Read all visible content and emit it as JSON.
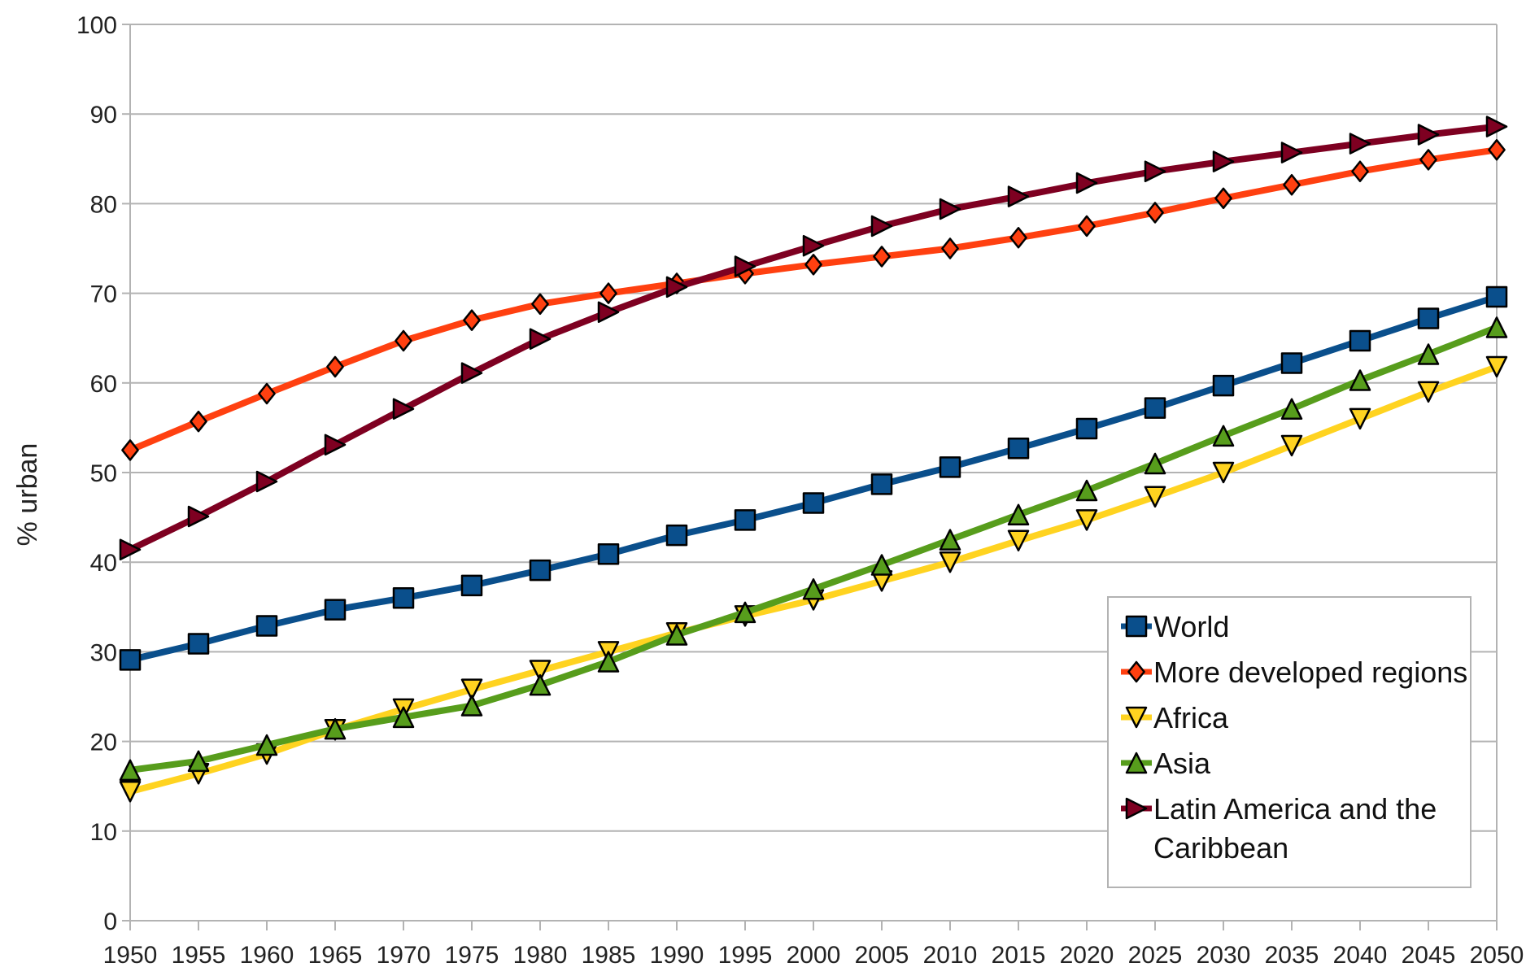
{
  "chart_data": {
    "type": "line",
    "title": "",
    "xlabel": "",
    "ylabel": "% urban",
    "x": [
      1950,
      1955,
      1960,
      1965,
      1970,
      1975,
      1980,
      1985,
      1990,
      1995,
      2000,
      2005,
      2010,
      2015,
      2020,
      2025,
      2030,
      2035,
      2040,
      2045,
      2050
    ],
    "x_tick_labels": [
      "1950",
      "1955",
      "1960",
      "1965",
      "1970",
      "1975",
      "1980",
      "1985",
      "1990",
      "1995",
      "2000",
      "2005",
      "2010",
      "2015",
      "2020",
      "2025",
      "2030",
      "2035",
      "2040",
      "2045",
      "2050"
    ],
    "y_tick_labels": [
      "0",
      "10",
      "20",
      "30",
      "40",
      "50",
      "60",
      "70",
      "80",
      "90",
      "100"
    ],
    "xlim": [
      1950,
      2050
    ],
    "ylim": [
      0,
      100
    ],
    "grid": "horizontal",
    "legend_position": "bottom-right",
    "series": [
      {
        "name": "World",
        "line_color": "#0a4f8c",
        "marker": "square",
        "marker_color": "#0a4f8c",
        "values": [
          29.1,
          30.9,
          32.9,
          34.7,
          36.0,
          37.4,
          39.1,
          40.9,
          43.0,
          44.7,
          46.6,
          48.7,
          50.6,
          52.7,
          54.9,
          57.2,
          59.7,
          62.2,
          64.7,
          67.2,
          69.6
        ]
      },
      {
        "name": "More developed regions",
        "line_color": "#ff4010",
        "marker": "diamond",
        "marker_color": "#ff4010",
        "values": [
          52.5,
          55.7,
          58.8,
          61.8,
          64.7,
          67.0,
          68.8,
          70.0,
          71.1,
          72.2,
          73.2,
          74.1,
          75.0,
          76.2,
          77.5,
          79.0,
          80.6,
          82.1,
          83.6,
          84.9,
          86.0
        ]
      },
      {
        "name": "Africa",
        "line_color": "#ffd320",
        "marker": "triangle-down",
        "marker_color": "#ffd320",
        "values": [
          14.4,
          16.4,
          18.6,
          21.3,
          23.6,
          25.8,
          27.9,
          30.0,
          32.1,
          34.0,
          35.8,
          37.9,
          40.0,
          42.4,
          44.7,
          47.3,
          50.0,
          53.0,
          56.0,
          59.0,
          61.8
        ]
      },
      {
        "name": "Asia",
        "line_color": "#579d1c",
        "marker": "triangle-up",
        "marker_color": "#579d1c",
        "values": [
          16.8,
          17.8,
          19.6,
          21.4,
          22.7,
          24.0,
          26.3,
          28.9,
          31.9,
          34.4,
          37.0,
          39.7,
          42.5,
          45.3,
          48.0,
          51.0,
          54.1,
          57.1,
          60.3,
          63.2,
          66.2
        ]
      },
      {
        "name": "Latin America and the Caribbean",
        "legend_lines": [
          "Latin America and the",
          "Caribbean"
        ],
        "line_color": "#7e0021",
        "marker": "triangle-right",
        "marker_color": "#7e0021",
        "values": [
          41.4,
          45.1,
          49.0,
          53.1,
          57.1,
          61.1,
          64.9,
          67.9,
          70.7,
          73.0,
          75.3,
          77.5,
          79.4,
          80.8,
          82.3,
          83.6,
          84.7,
          85.7,
          86.7,
          87.7,
          88.6
        ]
      }
    ]
  }
}
